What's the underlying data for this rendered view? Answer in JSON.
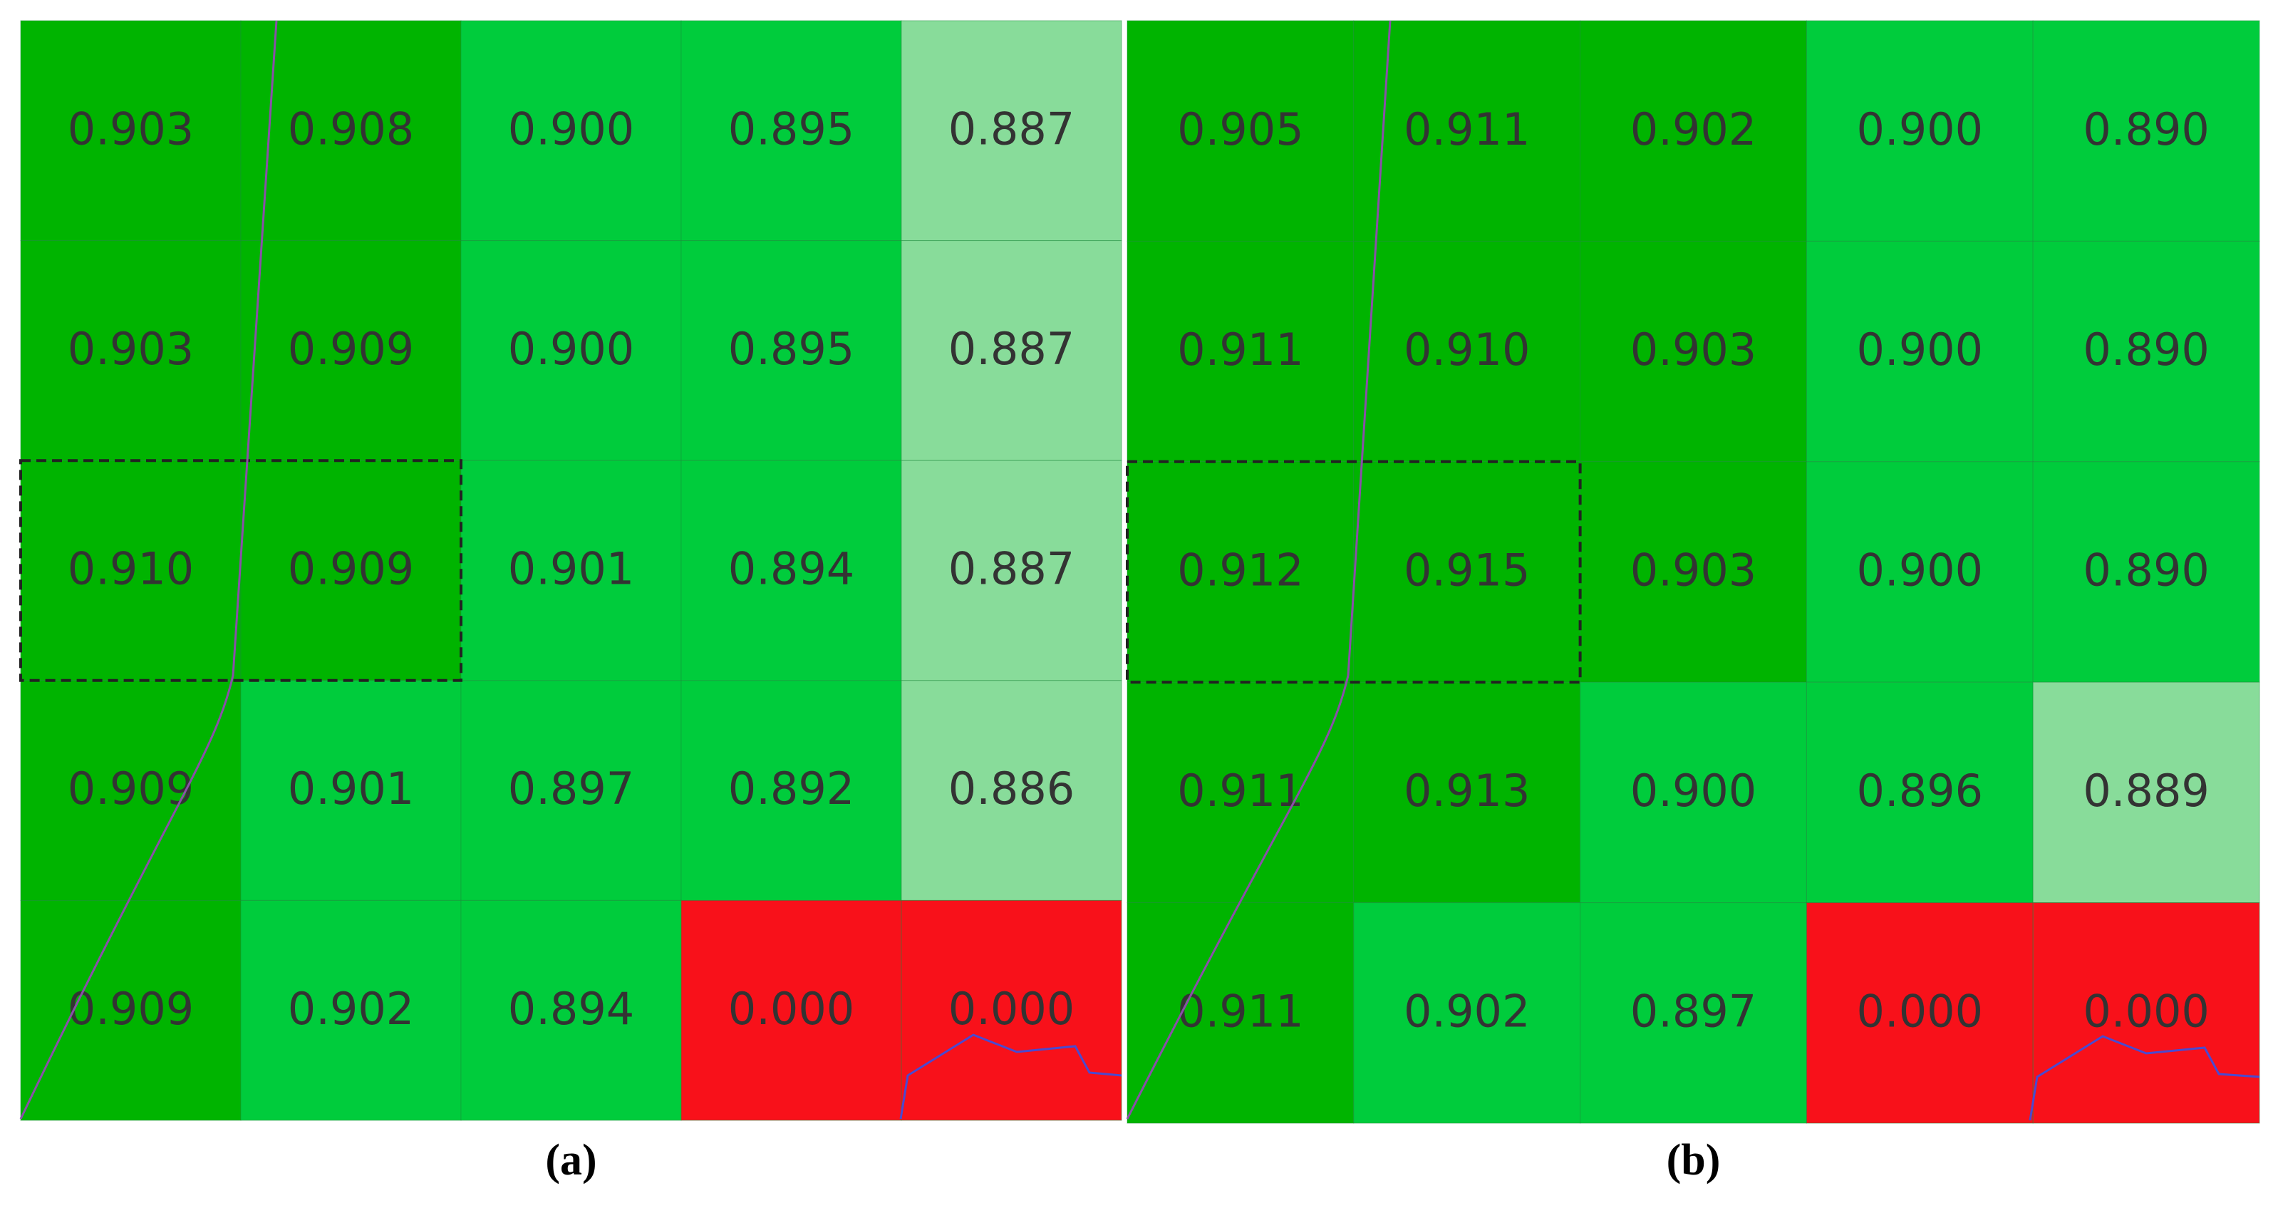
{
  "chart_data": [
    {
      "type": "heatmap",
      "label": "(a)",
      "values": [
        [
          0.903,
          0.908,
          0.9,
          0.895,
          0.887
        ],
        [
          0.903,
          0.909,
          0.9,
          0.895,
          0.887
        ],
        [
          0.91,
          0.909,
          0.901,
          0.894,
          0.887
        ],
        [
          0.909,
          0.901,
          0.897,
          0.892,
          0.886
        ],
        [
          0.909,
          0.902,
          0.894,
          0.0,
          0.0
        ]
      ],
      "value_labels": [
        [
          "0.903",
          "0.908",
          "0.900",
          "0.895",
          "0.887"
        ],
        [
          "0.903",
          "0.909",
          "0.900",
          "0.895",
          "0.887"
        ],
        [
          "0.910",
          "0.909",
          "0.901",
          "0.894",
          "0.887"
        ],
        [
          "0.909",
          "0.901",
          "0.897",
          "0.892",
          "0.886"
        ],
        [
          "0.909",
          "0.902",
          "0.894",
          "0.000",
          "0.000"
        ]
      ],
      "colors": [
        [
          "#00b400",
          "#00b400",
          "#00cc3c",
          "#00cc3c",
          "#88dc9a"
        ],
        [
          "#00b400",
          "#00b400",
          "#00cc3c",
          "#00cc3c",
          "#88dc9a"
        ],
        [
          "#00b400",
          "#00b400",
          "#00cc3c",
          "#00cc3c",
          "#88dc9a"
        ],
        [
          "#00b400",
          "#00cc3c",
          "#00cc3c",
          "#00cc3c",
          "#88dc9a"
        ],
        [
          "#00b400",
          "#00cc3c",
          "#00cc3c",
          "#f8111a",
          "#f8111a"
        ]
      ]
    },
    {
      "type": "heatmap",
      "label": "(b)",
      "values": [
        [
          0.905,
          0.911,
          0.902,
          0.9,
          0.89
        ],
        [
          0.911,
          0.91,
          0.903,
          0.9,
          0.89
        ],
        [
          0.912,
          0.915,
          0.903,
          0.9,
          0.89
        ],
        [
          0.911,
          0.913,
          0.9,
          0.896,
          0.889
        ],
        [
          0.911,
          0.902,
          0.897,
          0.0,
          0.0
        ]
      ],
      "value_labels": [
        [
          "0.905",
          "0.911",
          "0.902",
          "0.900",
          "0.890"
        ],
        [
          "0.911",
          "0.910",
          "0.903",
          "0.900",
          "0.890"
        ],
        [
          "0.912",
          "0.915",
          "0.903",
          "0.900",
          "0.890"
        ],
        [
          "0.911",
          "0.913",
          "0.900",
          "0.896",
          "0.889"
        ],
        [
          "0.911",
          "0.902",
          "0.897",
          "0.000",
          "0.000"
        ]
      ],
      "colors": [
        [
          "#00b400",
          "#00b400",
          "#00b400",
          "#00cc3c",
          "#00cc3c"
        ],
        [
          "#00b400",
          "#00b400",
          "#00b400",
          "#00cc3c",
          "#00cc3c"
        ],
        [
          "#00b400",
          "#00b400",
          "#00b400",
          "#00cc3c",
          "#00cc3c"
        ],
        [
          "#00b400",
          "#00b400",
          "#00cc3c",
          "#00cc3c",
          "#88dc9a"
        ],
        [
          "#00b400",
          "#00cc3c",
          "#00cc3c",
          "#f8111a",
          "#f8111a"
        ]
      ]
    }
  ]
}
